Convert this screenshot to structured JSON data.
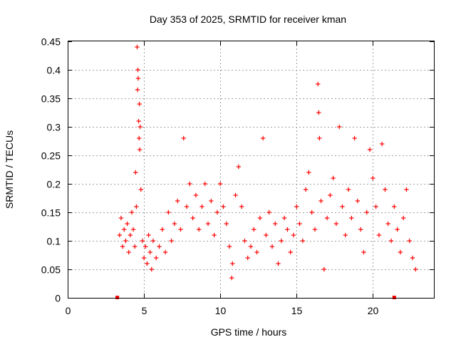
{
  "chart_data": {
    "type": "scatter",
    "title": "Day 353 of 2025, SRMTID for receiver kman",
    "xlabel": "GPS time / hours",
    "ylabel": "SRMTID / TECUs",
    "xlim": [
      0,
      24
    ],
    "ylim": [
      0,
      0.45
    ],
    "xticks": [
      {
        "value": 0,
        "label": "0"
      },
      {
        "value": 5,
        "label": "5"
      },
      {
        "value": 10,
        "label": "10"
      },
      {
        "value": 15,
        "label": "15"
      },
      {
        "value": 20,
        "label": "20"
      }
    ],
    "yticks": [
      {
        "value": 0,
        "label": "0"
      },
      {
        "value": 0.05,
        "label": "0.05"
      },
      {
        "value": 0.1,
        "label": "0.1"
      },
      {
        "value": 0.15,
        "label": "0.15"
      },
      {
        "value": 0.2,
        "label": "0.2"
      },
      {
        "value": 0.25,
        "label": "0.25"
      },
      {
        "value": 0.3,
        "label": "0.3"
      },
      {
        "value": 0.35,
        "label": "0.35"
      },
      {
        "value": 0.4,
        "label": "0.4"
      },
      {
        "value": 0.45,
        "label": "0.45"
      }
    ],
    "grid": true,
    "marker": "plus",
    "color": "#ff0000",
    "x_range_markers": [
      3.25,
      21.4
    ],
    "series": [
      {
        "name": "SRMTID",
        "points": [
          {
            "x": 3.4,
            "y": 0.11
          },
          {
            "x": 3.5,
            "y": 0.14
          },
          {
            "x": 3.6,
            "y": 0.09
          },
          {
            "x": 3.7,
            "y": 0.12
          },
          {
            "x": 3.8,
            "y": 0.1
          },
          {
            "x": 3.9,
            "y": 0.13
          },
          {
            "x": 4.0,
            "y": 0.08
          },
          {
            "x": 4.1,
            "y": 0.11
          },
          {
            "x": 4.2,
            "y": 0.15
          },
          {
            "x": 4.3,
            "y": 0.12
          },
          {
            "x": 4.4,
            "y": 0.09
          },
          {
            "x": 4.5,
            "y": 0.16
          },
          {
            "x": 4.55,
            "y": 0.44
          },
          {
            "x": 4.6,
            "y": 0.4
          },
          {
            "x": 4.62,
            "y": 0.385
          },
          {
            "x": 4.58,
            "y": 0.365
          },
          {
            "x": 4.7,
            "y": 0.34
          },
          {
            "x": 4.65,
            "y": 0.31
          },
          {
            "x": 4.75,
            "y": 0.3
          },
          {
            "x": 4.68,
            "y": 0.28
          },
          {
            "x": 4.72,
            "y": 0.26
          },
          {
            "x": 4.45,
            "y": 0.22
          },
          {
            "x": 4.8,
            "y": 0.19
          },
          {
            "x": 4.9,
            "y": 0.1
          },
          {
            "x": 5.0,
            "y": 0.07
          },
          {
            "x": 5.1,
            "y": 0.09
          },
          {
            "x": 5.2,
            "y": 0.06
          },
          {
            "x": 5.3,
            "y": 0.11
          },
          {
            "x": 5.4,
            "y": 0.08
          },
          {
            "x": 5.5,
            "y": 0.05
          },
          {
            "x": 5.6,
            "y": 0.1
          },
          {
            "x": 5.8,
            "y": 0.07
          },
          {
            "x": 6.0,
            "y": 0.09
          },
          {
            "x": 6.2,
            "y": 0.12
          },
          {
            "x": 6.4,
            "y": 0.08
          },
          {
            "x": 6.6,
            "y": 0.15
          },
          {
            "x": 6.8,
            "y": 0.1
          },
          {
            "x": 7.0,
            "y": 0.13
          },
          {
            "x": 7.2,
            "y": 0.17
          },
          {
            "x": 7.4,
            "y": 0.12
          },
          {
            "x": 7.6,
            "y": 0.28
          },
          {
            "x": 7.8,
            "y": 0.16
          },
          {
            "x": 8.0,
            "y": 0.2
          },
          {
            "x": 8.2,
            "y": 0.14
          },
          {
            "x": 8.4,
            "y": 0.18
          },
          {
            "x": 8.6,
            "y": 0.12
          },
          {
            "x": 8.8,
            "y": 0.16
          },
          {
            "x": 9.0,
            "y": 0.2
          },
          {
            "x": 9.2,
            "y": 0.13
          },
          {
            "x": 9.4,
            "y": 0.17
          },
          {
            "x": 9.6,
            "y": 0.11
          },
          {
            "x": 9.8,
            "y": 0.15
          },
          {
            "x": 10.0,
            "y": 0.2
          },
          {
            "x": 10.2,
            "y": 0.16
          },
          {
            "x": 10.4,
            "y": 0.13
          },
          {
            "x": 10.6,
            "y": 0.09
          },
          {
            "x": 10.75,
            "y": 0.035
          },
          {
            "x": 10.8,
            "y": 0.06
          },
          {
            "x": 11.0,
            "y": 0.18
          },
          {
            "x": 11.2,
            "y": 0.23
          },
          {
            "x": 11.4,
            "y": 0.16
          },
          {
            "x": 11.6,
            "y": 0.1
          },
          {
            "x": 11.8,
            "y": 0.07
          },
          {
            "x": 12.0,
            "y": 0.09
          },
          {
            "x": 12.2,
            "y": 0.12
          },
          {
            "x": 12.4,
            "y": 0.08
          },
          {
            "x": 12.6,
            "y": 0.14
          },
          {
            "x": 12.8,
            "y": 0.28
          },
          {
            "x": 13.0,
            "y": 0.11
          },
          {
            "x": 13.2,
            "y": 0.15
          },
          {
            "x": 13.4,
            "y": 0.09
          },
          {
            "x": 13.6,
            "y": 0.13
          },
          {
            "x": 13.8,
            "y": 0.06
          },
          {
            "x": 14.0,
            "y": 0.1
          },
          {
            "x": 14.2,
            "y": 0.14
          },
          {
            "x": 14.4,
            "y": 0.12
          },
          {
            "x": 14.6,
            "y": 0.08
          },
          {
            "x": 14.8,
            "y": 0.11
          },
          {
            "x": 15.0,
            "y": 0.16
          },
          {
            "x": 15.2,
            "y": 0.13
          },
          {
            "x": 15.4,
            "y": 0.1
          },
          {
            "x": 15.6,
            "y": 0.19
          },
          {
            "x": 15.8,
            "y": 0.22
          },
          {
            "x": 16.0,
            "y": 0.15
          },
          {
            "x": 16.2,
            "y": 0.12
          },
          {
            "x": 16.4,
            "y": 0.375
          },
          {
            "x": 16.45,
            "y": 0.325
          },
          {
            "x": 16.5,
            "y": 0.28
          },
          {
            "x": 16.6,
            "y": 0.17
          },
          {
            "x": 16.8,
            "y": 0.05
          },
          {
            "x": 17.0,
            "y": 0.14
          },
          {
            "x": 17.2,
            "y": 0.18
          },
          {
            "x": 17.4,
            "y": 0.21
          },
          {
            "x": 17.6,
            "y": 0.13
          },
          {
            "x": 17.8,
            "y": 0.3
          },
          {
            "x": 18.0,
            "y": 0.16
          },
          {
            "x": 18.2,
            "y": 0.11
          },
          {
            "x": 18.4,
            "y": 0.19
          },
          {
            "x": 18.6,
            "y": 0.14
          },
          {
            "x": 18.8,
            "y": 0.28
          },
          {
            "x": 19.0,
            "y": 0.17
          },
          {
            "x": 19.2,
            "y": 0.12
          },
          {
            "x": 19.4,
            "y": 0.08
          },
          {
            "x": 19.6,
            "y": 0.15
          },
          {
            "x": 19.8,
            "y": 0.26
          },
          {
            "x": 20.0,
            "y": 0.21
          },
          {
            "x": 20.2,
            "y": 0.16
          },
          {
            "x": 20.4,
            "y": 0.11
          },
          {
            "x": 20.6,
            "y": 0.27
          },
          {
            "x": 20.8,
            "y": 0.19
          },
          {
            "x": 21.0,
            "y": 0.13
          },
          {
            "x": 21.2,
            "y": 0.1
          },
          {
            "x": 21.4,
            "y": 0.16
          },
          {
            "x": 21.6,
            "y": 0.12
          },
          {
            "x": 21.8,
            "y": 0.08
          },
          {
            "x": 22.0,
            "y": 0.14
          },
          {
            "x": 22.2,
            "y": 0.19
          },
          {
            "x": 22.4,
            "y": 0.1
          },
          {
            "x": 22.6,
            "y": 0.07
          },
          {
            "x": 22.8,
            "y": 0.05
          }
        ]
      }
    ]
  }
}
